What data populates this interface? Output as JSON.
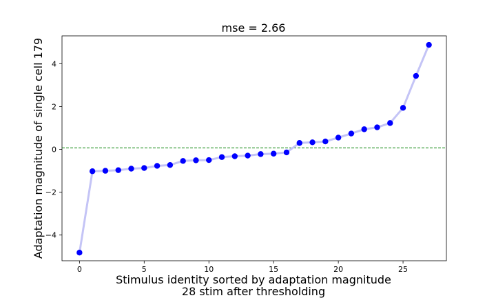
{
  "chart_data": {
    "type": "line",
    "title": "mse = 2.66",
    "xlabel_lines": [
      "Stimulus identity sorted by adaptation magnitude",
      "28 stim after thresholding"
    ],
    "ylabel": "Adaptation magnitude of single cell 179",
    "xlim": [
      -1.35,
      28.35
    ],
    "ylim": [
      -5.2,
      5.3
    ],
    "xticks": [
      0,
      5,
      10,
      15,
      20,
      25
    ],
    "yticks": [
      -4,
      -2,
      0,
      2,
      4
    ],
    "grid": false,
    "series": [
      {
        "color": "#0000ff",
        "line_color": "#c4c4f6",
        "marker": "circle",
        "x": [
          0,
          1,
          2,
          3,
          4,
          5,
          6,
          7,
          8,
          9,
          10,
          11,
          12,
          13,
          14,
          15,
          16,
          17,
          18,
          19,
          20,
          21,
          22,
          23,
          24,
          25,
          26,
          27
        ],
        "y": [
          -4.82,
          -1.02,
          -1.0,
          -0.97,
          -0.9,
          -0.87,
          -0.77,
          -0.73,
          -0.54,
          -0.51,
          -0.5,
          -0.36,
          -0.32,
          -0.29,
          -0.22,
          -0.2,
          -0.14,
          0.3,
          0.33,
          0.37,
          0.55,
          0.74,
          0.94,
          1.03,
          1.23,
          1.94,
          3.43,
          4.88
        ]
      }
    ],
    "reference_lines": [
      {
        "axis": "y",
        "value": 0.07,
        "color": "#008000",
        "style": "dashed"
      }
    ]
  }
}
